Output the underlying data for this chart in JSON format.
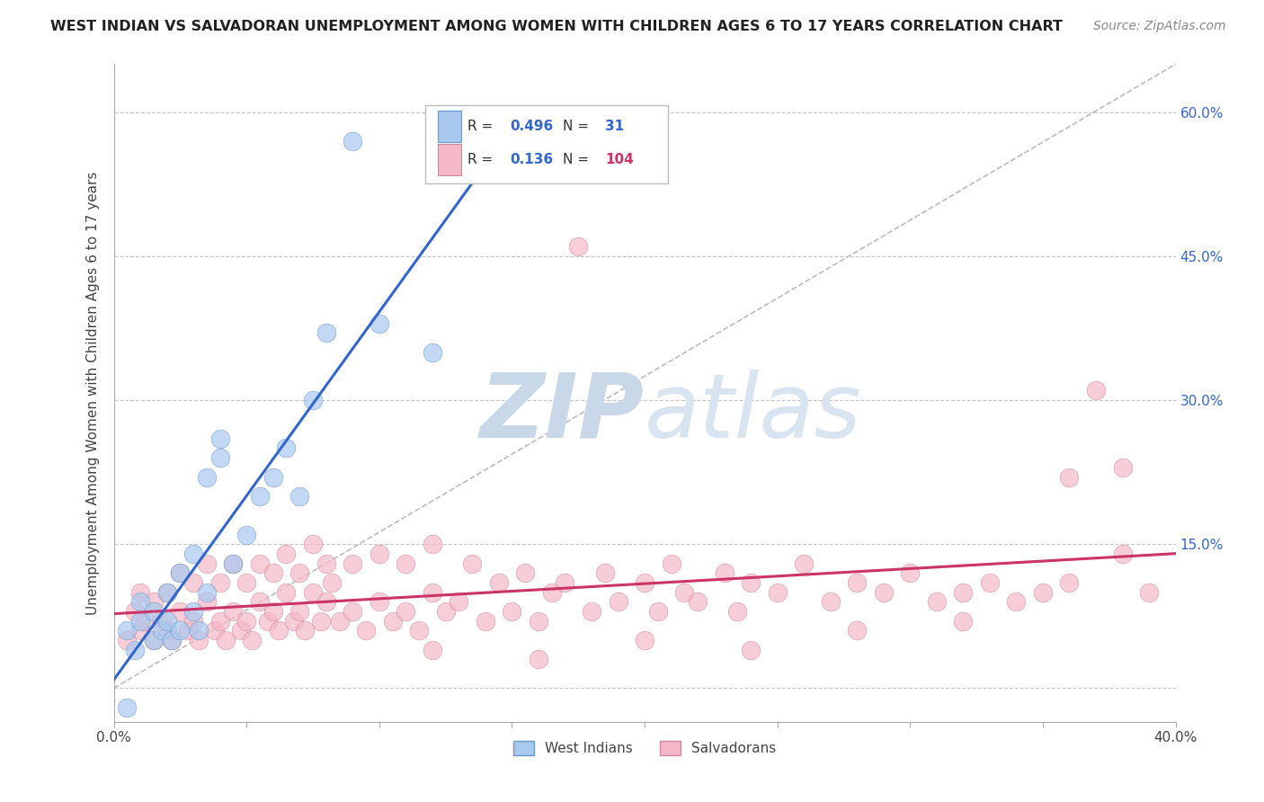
{
  "title": "WEST INDIAN VS SALVADORAN UNEMPLOYMENT AMONG WOMEN WITH CHILDREN AGES 6 TO 17 YEARS CORRELATION CHART",
  "source": "Source: ZipAtlas.com",
  "ylabel": "Unemployment Among Women with Children Ages 6 to 17 years",
  "xlim": [
    0.0,
    0.4
  ],
  "ylim": [
    -0.035,
    0.65
  ],
  "legend_R1": "0.496",
  "legend_N1": "31",
  "legend_R2": "0.136",
  "legend_N2": "104",
  "color_west_indian_fill": "#a8c8f0",
  "color_west_indian_edge": "#6699cc",
  "color_salvadoran_fill": "#f4b8c8",
  "color_salvadoran_edge": "#cc8899",
  "color_trend_west_indian": "#3366cc",
  "color_trend_salvadoran": "#cc3366",
  "color_grid": "#c8c8c8",
  "color_diagonal": "#bbbbbb",
  "color_watermark_zip": "#c8d8e8",
  "color_watermark_atlas": "#c8d8e8",
  "wi_x": [
    0.005,
    0.008,
    0.01,
    0.01,
    0.015,
    0.015,
    0.018,
    0.02,
    0.02,
    0.022,
    0.025,
    0.025,
    0.03,
    0.03,
    0.032,
    0.035,
    0.035,
    0.04,
    0.04,
    0.045,
    0.05,
    0.055,
    0.06,
    0.065,
    0.07,
    0.075,
    0.08,
    0.09,
    0.1,
    0.12,
    0.005
  ],
  "wi_y": [
    0.06,
    0.04,
    0.07,
    0.09,
    0.05,
    0.08,
    0.06,
    0.07,
    0.1,
    0.05,
    0.06,
    0.12,
    0.08,
    0.14,
    0.06,
    0.1,
    0.22,
    0.24,
    0.26,
    0.13,
    0.16,
    0.2,
    0.22,
    0.25,
    0.2,
    0.3,
    0.37,
    0.57,
    0.38,
    0.35,
    -0.02
  ],
  "sal_x": [
    0.005,
    0.008,
    0.01,
    0.01,
    0.012,
    0.015,
    0.015,
    0.018,
    0.02,
    0.02,
    0.022,
    0.025,
    0.025,
    0.028,
    0.03,
    0.03,
    0.032,
    0.035,
    0.035,
    0.038,
    0.04,
    0.04,
    0.042,
    0.045,
    0.045,
    0.048,
    0.05,
    0.05,
    0.052,
    0.055,
    0.055,
    0.058,
    0.06,
    0.06,
    0.062,
    0.065,
    0.065,
    0.068,
    0.07,
    0.07,
    0.072,
    0.075,
    0.075,
    0.078,
    0.08,
    0.08,
    0.082,
    0.085,
    0.09,
    0.09,
    0.095,
    0.1,
    0.1,
    0.105,
    0.11,
    0.11,
    0.115,
    0.12,
    0.12,
    0.125,
    0.13,
    0.135,
    0.14,
    0.145,
    0.15,
    0.155,
    0.16,
    0.165,
    0.17,
    0.175,
    0.18,
    0.185,
    0.19,
    0.2,
    0.205,
    0.21,
    0.215,
    0.22,
    0.23,
    0.235,
    0.24,
    0.25,
    0.26,
    0.27,
    0.28,
    0.29,
    0.3,
    0.31,
    0.32,
    0.33,
    0.34,
    0.35,
    0.36,
    0.37,
    0.38,
    0.39,
    0.38,
    0.36,
    0.32,
    0.28,
    0.24,
    0.2,
    0.16,
    0.12
  ],
  "sal_y": [
    0.05,
    0.08,
    0.06,
    0.1,
    0.07,
    0.05,
    0.09,
    0.07,
    0.06,
    0.1,
    0.05,
    0.08,
    0.12,
    0.06,
    0.07,
    0.11,
    0.05,
    0.09,
    0.13,
    0.06,
    0.07,
    0.11,
    0.05,
    0.08,
    0.13,
    0.06,
    0.07,
    0.11,
    0.05,
    0.09,
    0.13,
    0.07,
    0.08,
    0.12,
    0.06,
    0.1,
    0.14,
    0.07,
    0.08,
    0.12,
    0.06,
    0.1,
    0.15,
    0.07,
    0.09,
    0.13,
    0.11,
    0.07,
    0.08,
    0.13,
    0.06,
    0.09,
    0.14,
    0.07,
    0.08,
    0.13,
    0.06,
    0.1,
    0.15,
    0.08,
    0.09,
    0.13,
    0.07,
    0.11,
    0.08,
    0.12,
    0.07,
    0.1,
    0.11,
    0.46,
    0.08,
    0.12,
    0.09,
    0.11,
    0.08,
    0.13,
    0.1,
    0.09,
    0.12,
    0.08,
    0.11,
    0.1,
    0.13,
    0.09,
    0.11,
    0.1,
    0.12,
    0.09,
    0.1,
    0.11,
    0.09,
    0.1,
    0.11,
    0.31,
    0.14,
    0.1,
    0.23,
    0.22,
    0.07,
    0.06,
    0.04,
    0.05,
    0.03,
    0.04
  ]
}
